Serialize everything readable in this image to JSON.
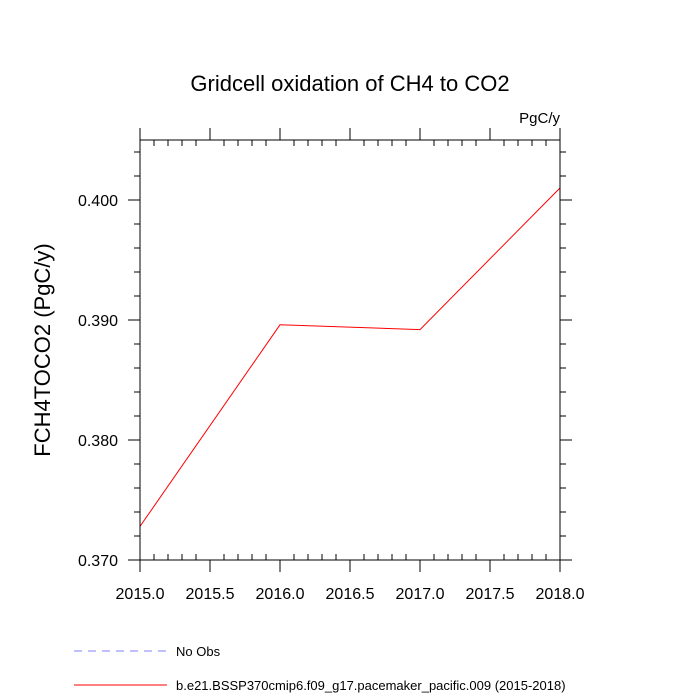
{
  "chart_data": {
    "type": "line",
    "title": "Gridcell oxidation of CH4 to CO2",
    "units": "PgC/y",
    "xlabel": "",
    "ylabel": "FCH4TOCO2  (PgC/y)",
    "xlim": [
      2015.0,
      2018.0
    ],
    "ylim": [
      0.37,
      0.405
    ],
    "x_ticks": [
      2015.0,
      2015.5,
      2016.0,
      2016.5,
      2017.0,
      2017.5,
      2018.0
    ],
    "x_tick_labels": [
      "2015.0",
      "2015.5",
      "2016.0",
      "2016.5",
      "2017.0",
      "2017.5",
      "2018.0"
    ],
    "x_minor_ticks": [
      2015.1,
      2015.2,
      2015.3,
      2015.4,
      2015.6,
      2015.7,
      2015.8,
      2015.9,
      2016.1,
      2016.2,
      2016.3,
      2016.4,
      2016.6,
      2016.7,
      2016.8,
      2016.9,
      2017.1,
      2017.2,
      2017.3,
      2017.4,
      2017.6,
      2017.7,
      2017.8,
      2017.9
    ],
    "y_ticks": [
      0.37,
      0.38,
      0.39,
      0.4
    ],
    "y_tick_labels": [
      "0.370",
      "0.380",
      "0.390",
      "0.400"
    ],
    "y_minor_ticks": [
      0.372,
      0.374,
      0.376,
      0.378,
      0.382,
      0.384,
      0.386,
      0.388,
      0.392,
      0.394,
      0.396,
      0.398,
      0.402,
      0.404
    ],
    "grid": false,
    "series": [
      {
        "name": "No Obs",
        "color": "#8080ff",
        "dashed": true,
        "x": [],
        "values": []
      },
      {
        "name": "b.e21.BSSP370cmip6.f09_g17.pacemaker_pacific.009 (2015-2018)",
        "color": "#ff0000",
        "dashed": false,
        "x": [
          2015.0,
          2016.0,
          2017.0,
          2018.0
        ],
        "values": [
          0.3728,
          0.3896,
          0.3892,
          0.401
        ]
      }
    ],
    "legend_position": "bottom-left"
  }
}
